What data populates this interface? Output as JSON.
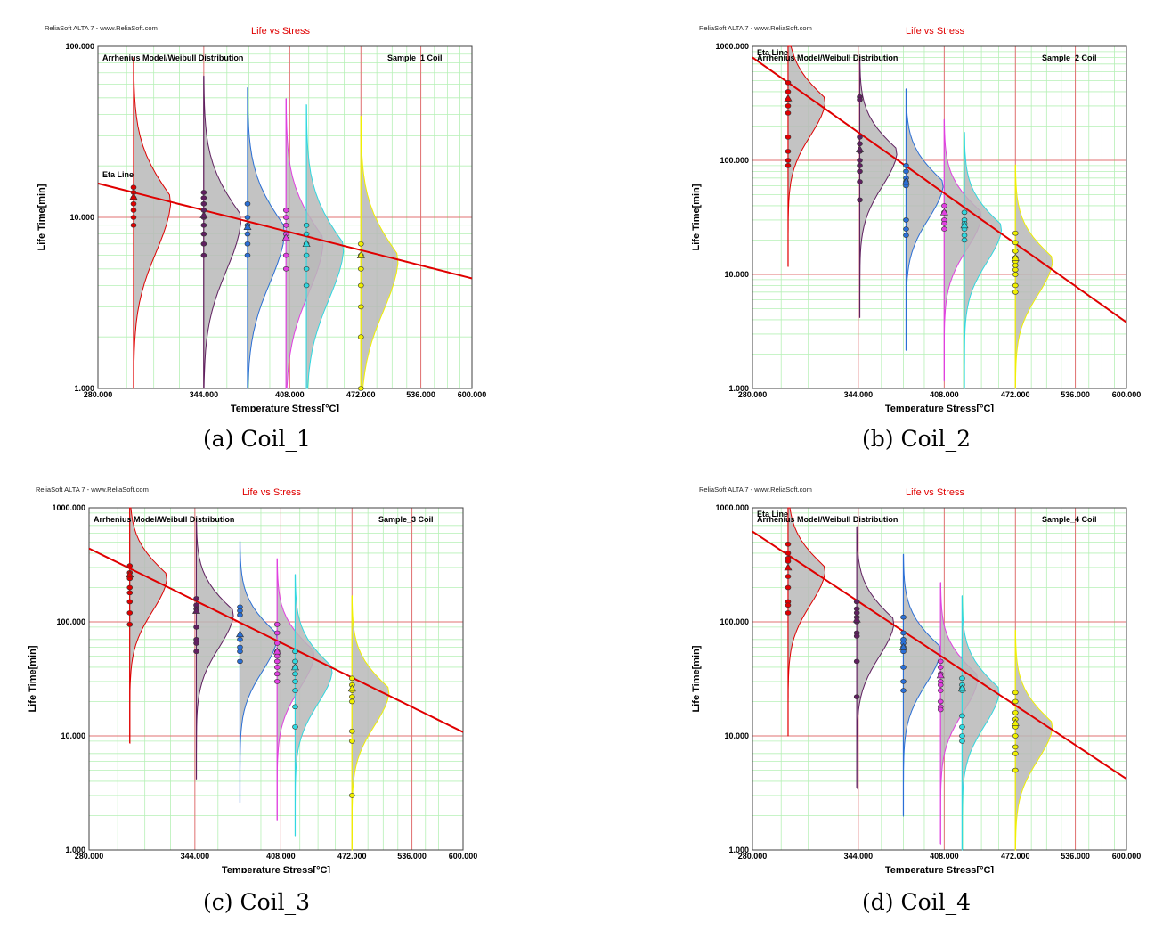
{
  "chart_data": [
    {
      "type": "scatter",
      "panel_id": "a",
      "software_label": "ReliaSoft ALTA 7 - www.ReliaSoft.com",
      "title": "Life vs Stress",
      "model_label": "Arrhenius Model/Weibull Distribution",
      "sample_label": "Sample_1  Coil",
      "eta_label": "Eta Line",
      "xlabel": "Temperature Stress[°C]",
      "ylabel": "Life Time[min]",
      "xscale": "reciprocal",
      "yscale": "log",
      "xlim": [
        280,
        600
      ],
      "ylim": [
        1,
        100
      ],
      "xticks": [
        "280.000",
        "344.000",
        "408.000",
        "472.000",
        "536.000",
        "600.000"
      ],
      "yticks": [
        "1.000",
        "10.000",
        "100.000"
      ],
      "grid": true,
      "caption": "(a) Coil_1",
      "eta_line": {
        "x": [
          280,
          600
        ],
        "y": [
          15.8,
          4.4
        ]
      },
      "series": [
        {
          "color": "#e00000",
          "temperature": 300,
          "values": [
            15,
            14,
            13,
            12,
            11,
            10,
            9
          ],
          "eta": 13.2
        },
        {
          "color": "#602060",
          "temperature": 344,
          "values": [
            14,
            13,
            12,
            11,
            10,
            9,
            8,
            7,
            6
          ],
          "eta": 10.3
        },
        {
          "color": "#2a6fd6",
          "temperature": 375,
          "values": [
            12,
            10,
            9,
            8,
            7,
            6
          ],
          "eta": 8.8
        },
        {
          "color": "#e040e0",
          "temperature": 405,
          "values": [
            11,
            10,
            9,
            8,
            7.5,
            6,
            5
          ],
          "eta": 7.6
        },
        {
          "color": "#30d8e0",
          "temperature": 422,
          "values": [
            9,
            8,
            7,
            6,
            5,
            4
          ],
          "eta": 7.0
        },
        {
          "color": "#f0f000",
          "temperature": 472,
          "values": [
            7,
            6,
            5,
            4,
            3,
            2,
            1
          ],
          "eta": 6.0
        }
      ]
    },
    {
      "type": "scatter",
      "panel_id": "b",
      "software_label": "ReliaSoft ALTA 7 - www.ReliaSoft.com",
      "title": "Life vs Stress",
      "model_label": "Arrhenius Model/Weibull Distribution",
      "sample_label": "Sample_2 Coil",
      "eta_label": "Eta Line",
      "xlabel": "Temperature Stress[°C]",
      "ylabel": "Life Time[min]",
      "xscale": "reciprocal",
      "yscale": "log",
      "xlim": [
        280,
        600
      ],
      "ylim": [
        1,
        1000
      ],
      "xticks": [
        "280.000",
        "344.000",
        "408.000",
        "472.000",
        "536.000",
        "600.000"
      ],
      "yticks": [
        "1.000",
        "10.000",
        "100.000",
        "1000.000"
      ],
      "grid": true,
      "caption": "(b) Coil_2",
      "eta_line": {
        "x": [
          280,
          600
        ],
        "y": [
          800,
          3.8
        ]
      },
      "series": [
        {
          "color": "#e00000",
          "temperature": 300,
          "values": [
            480,
            400,
            340,
            300,
            260,
            160,
            120,
            100,
            90
          ],
          "eta": 350
        },
        {
          "color": "#602060",
          "temperature": 345,
          "values": [
            360,
            340,
            160,
            140,
            120,
            100,
            90,
            80,
            65,
            45
          ],
          "eta": 125
        },
        {
          "color": "#2a6fd6",
          "temperature": 378,
          "values": [
            90,
            80,
            70,
            65,
            60,
            30,
            25,
            22
          ],
          "eta": 65
        },
        {
          "color": "#e040e0",
          "temperature": 408,
          "values": [
            40,
            35,
            30,
            28,
            25
          ],
          "eta": 35
        },
        {
          "color": "#30d8e0",
          "temperature": 425,
          "values": [
            35,
            30,
            28,
            25,
            22,
            20
          ],
          "eta": 27
        },
        {
          "color": "#f0f000",
          "temperature": 472,
          "values": [
            23,
            19,
            16,
            14,
            13,
            12,
            11,
            10,
            8,
            7
          ],
          "eta": 14
        }
      ]
    },
    {
      "type": "scatter",
      "panel_id": "c",
      "software_label": "ReliaSoft ALTA 7 - www.ReliaSoft.com",
      "title": "Life vs Stress",
      "model_label": "Arrhenius Model/Weibull Distribution",
      "sample_label": "Sample_3 Coil",
      "eta_label": "",
      "xlabel": "Temperature Stress[°C]",
      "ylabel": "Life Time[min]",
      "xscale": "reciprocal",
      "yscale": "log",
      "xlim": [
        280,
        600
      ],
      "ylim": [
        1,
        1000
      ],
      "xticks": [
        "280.000",
        "344.000",
        "408.000",
        "472.000",
        "536.000",
        "600.000"
      ],
      "yticks": [
        "1.000",
        "10.000",
        "100.000",
        "1000.000"
      ],
      "grid": true,
      "caption": "(c) Coil_3",
      "eta_line": {
        "x": [
          280,
          600
        ],
        "y": [
          440,
          10.8
        ]
      },
      "series": [
        {
          "color": "#e00000",
          "temperature": 303,
          "values": [
            310,
            270,
            240,
            200,
            180,
            150,
            120,
            95
          ],
          "eta": 260
        },
        {
          "color": "#602060",
          "temperature": 345,
          "values": [
            160,
            140,
            130,
            90,
            70,
            65,
            55
          ],
          "eta": 125
        },
        {
          "color": "#2a6fd6",
          "temperature": 376,
          "values": [
            135,
            125,
            115,
            70,
            60,
            55,
            45
          ],
          "eta": 78
        },
        {
          "color": "#e040e0",
          "temperature": 405,
          "values": [
            95,
            80,
            65,
            55,
            50,
            45,
            40,
            35,
            30
          ],
          "eta": 55
        },
        {
          "color": "#30d8e0",
          "temperature": 420,
          "values": [
            55,
            45,
            40,
            35,
            30,
            25,
            18,
            12
          ],
          "eta": 40
        },
        {
          "color": "#f0f000",
          "temperature": 472,
          "values": [
            32,
            28,
            25,
            22,
            20,
            11,
            9,
            3
          ],
          "eta": 26
        }
      ]
    },
    {
      "type": "scatter",
      "panel_id": "d",
      "software_label": "ReliaSoft ALTA 7 - www.ReliaSoft.com",
      "title": "Life vs Stress",
      "model_label": "Arrhenius Model/Weibull Distribution",
      "sample_label": "Sample_4 Coil",
      "eta_label": "Eta Line",
      "xlabel": "Temperature Stress[°C]",
      "ylabel": "Life Time[min]",
      "xscale": "reciprocal",
      "yscale": "log",
      "xlim": [
        280,
        600
      ],
      "ylim": [
        1,
        1000
      ],
      "xticks": [
        "280.000",
        "344.000",
        "408.000",
        "472.000",
        "536.000",
        "600.000"
      ],
      "yticks": [
        "1.000",
        "10.000",
        "100.000",
        "1000.000"
      ],
      "grid": true,
      "caption": "(d) Coil_4",
      "eta_line": {
        "x": [
          280,
          600
        ],
        "y": [
          620,
          4.2
        ]
      },
      "series": [
        {
          "color": "#e00000",
          "temperature": 300,
          "values": [
            480,
            400,
            360,
            340,
            250,
            200,
            150,
            140,
            120
          ],
          "eta": 300
        },
        {
          "color": "#602060",
          "temperature": 343,
          "values": [
            150,
            130,
            120,
            110,
            100,
            80,
            75,
            45,
            22
          ],
          "eta": 105
        },
        {
          "color": "#2a6fd6",
          "temperature": 376,
          "values": [
            110,
            80,
            70,
            65,
            60,
            58,
            55,
            40,
            30,
            25
          ],
          "eta": 60
        },
        {
          "color": "#e040e0",
          "temperature": 405,
          "values": [
            45,
            40,
            35,
            30,
            28,
            25,
            20,
            18,
            17
          ],
          "eta": 34
        },
        {
          "color": "#30d8e0",
          "temperature": 423,
          "values": [
            32,
            28,
            26,
            25,
            15,
            12,
            10,
            9
          ],
          "eta": 26
        },
        {
          "color": "#f0f000",
          "temperature": 472,
          "values": [
            24,
            20,
            16,
            14,
            12,
            10,
            8,
            7,
            5
          ],
          "eta": 13
        }
      ]
    }
  ]
}
